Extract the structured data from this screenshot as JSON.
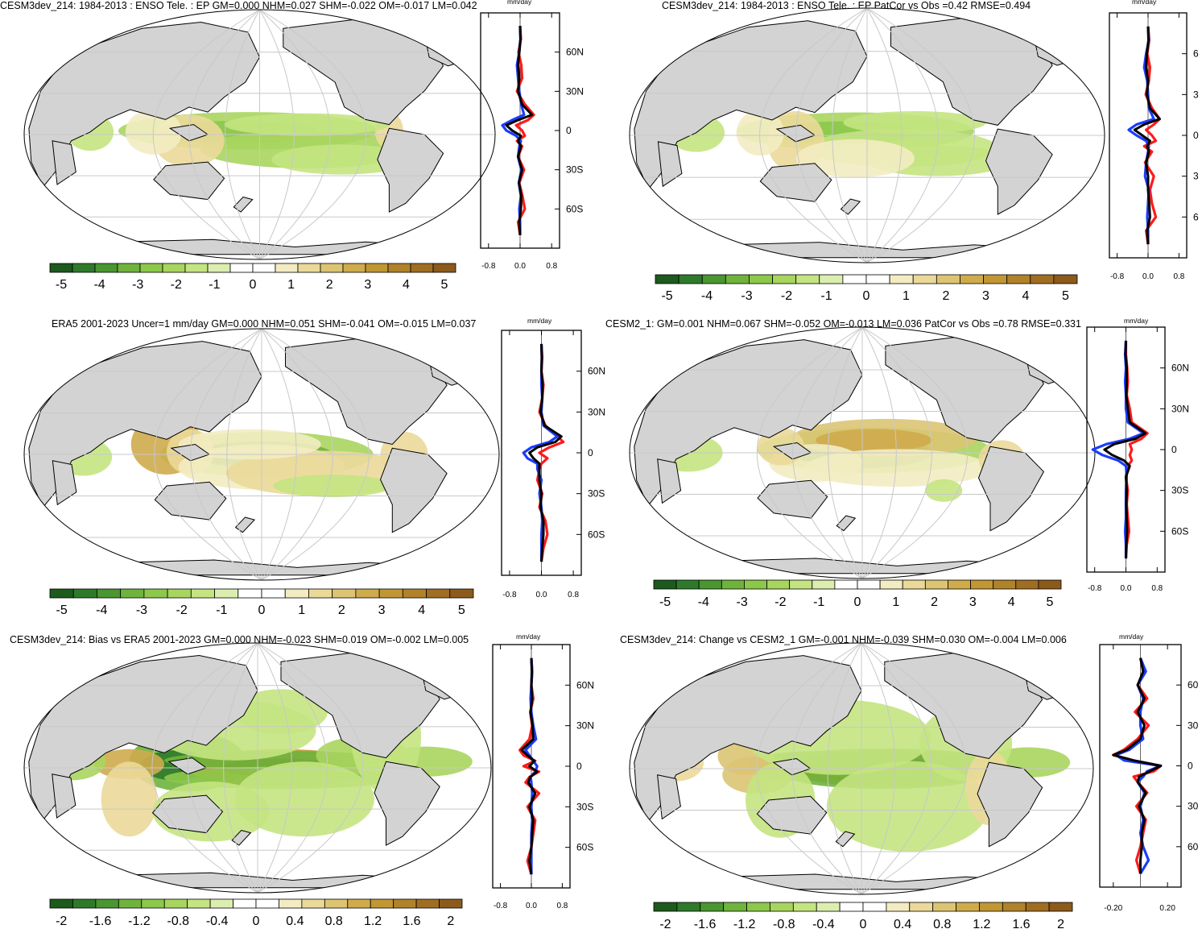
{
  "colors": {
    "land": "#d3d3d3",
    "ocean": "#ffffff",
    "grid": "#c8c8c8",
    "line_red": "#ff1a1a",
    "line_blue": "#1a3cff",
    "line_black": "#000000",
    "palette": [
      "#1d5a1d",
      "#2f7a2a",
      "#4a9630",
      "#6fb33c",
      "#8cc84a",
      "#a8d55e",
      "#c4e481",
      "#dcedb0",
      "#ffffff",
      "#ffffff",
      "#f3ecc2",
      "#ebd99a",
      "#dcc473",
      "#cfab4c",
      "#c19734",
      "#b0822a",
      "#a06e22",
      "#8c5a1a"
    ]
  },
  "panels": [
    {
      "title": "CESM3dev_214: 1984-2013 : ENSO Tele. : EP GM=0.000 NHM=0.027 SHM=-0.022 OM=-0.017 LM=0.042",
      "unit": "mm/day",
      "colorbar_labels": [
        "-5",
        "-4",
        "-3",
        "-2",
        "-1",
        "0",
        "1",
        "2",
        "3",
        "4",
        "5"
      ],
      "profile_x_ticks": [
        "-0.8",
        "0.0",
        "0.8"
      ],
      "profile_y_ticks": [
        "60N",
        "30N",
        "0",
        "30S",
        "60S"
      ]
    },
    {
      "title": "CESM3dev_214: 1984-2013 : ENSO Tele. : EP PatCor vs Obs =0.42 RMSE=0.494",
      "unit": "mm/day",
      "colorbar_labels": [
        "-5",
        "-4",
        "-3",
        "-2",
        "-1",
        "0",
        "1",
        "2",
        "3",
        "4",
        "5"
      ],
      "profile_x_ticks": [
        "-0.8",
        "0.0",
        "0.8"
      ],
      "profile_y_ticks": [
        "6",
        "3",
        "0",
        "3",
        "6"
      ]
    },
    {
      "title": "ERA5 2001-2023 Uncer=1 mm/day GM=0.000 NHM=0.051 SHM=-0.041 OM=-0.015 LM=0.037",
      "unit": "mm/day",
      "colorbar_labels": [
        "-5",
        "-4",
        "-3",
        "-2",
        "-1",
        "0",
        "1",
        "2",
        "3",
        "4",
        "5"
      ],
      "profile_x_ticks": [
        "-0.8",
        "0.0",
        "0.8"
      ],
      "profile_y_ticks": [
        "60N",
        "30N",
        "0",
        "30S",
        "60S"
      ]
    },
    {
      "title": "CESM2_1: GM=0.001 NHM=0.067 SHM=-0.052 OM=-0.013 LM=0.036 PatCor vs Obs =0.78 RMSE=0.331",
      "unit": "mm/day",
      "colorbar_labels": [
        "-5",
        "-4",
        "-3",
        "-2",
        "-1",
        "0",
        "1",
        "2",
        "3",
        "4",
        "5"
      ],
      "profile_x_ticks": [
        "-0.8",
        "0.0",
        "0.8"
      ],
      "profile_y_ticks": [
        "60N",
        "30N",
        "0",
        "30S",
        "60S"
      ]
    },
    {
      "title": "CESM3dev_214: Bias vs ERA5 2001-2023 GM=0.000 NHM=-0.023 SHM=0.019 OM=-0.002 LM=0.005",
      "unit": "mm/day",
      "colorbar_labels": [
        "-2",
        "-1.6",
        "-1.2",
        "-0.8",
        "-0.4",
        "0",
        "0.4",
        "0.8",
        "1.2",
        "1.6",
        "2"
      ],
      "profile_x_ticks": [
        "-0.8",
        "0.0",
        "0.8"
      ],
      "profile_y_ticks": [
        "60N",
        "30N",
        "0",
        "30S",
        "60S"
      ]
    },
    {
      "title": "CESM3dev_214: Change vs CESM2_1 GM=-0.001 NHM=-0.039 SHM=0.030 OM=-0.004 LM=0.006",
      "unit": "mm/day",
      "colorbar_labels": [
        "-2",
        "-1.6",
        "-1.2",
        "-0.8",
        "-0.4",
        "0",
        "0.4",
        "0.8",
        "1.2",
        "1.6",
        "2"
      ],
      "profile_x_ticks": [
        "-0.20",
        "0.20"
      ],
      "profile_y_ticks": [
        "60",
        "30",
        "0",
        "30",
        "60"
      ]
    }
  ],
  "chart_data": [
    {
      "type": "heatmap",
      "title": "CESM3dev_214: 1984-2013 : ENSO Tele. : EP GM=0.000 NHM=0.027 SHM=-0.022 OM=-0.017 LM=0.042",
      "colorbar_range": [
        -5,
        5
      ],
      "zonal_profile": {
        "xlim": [
          -1,
          1
        ],
        "ylim": [
          -90,
          90
        ],
        "lat": [
          80,
          70,
          60,
          50,
          40,
          30,
          20,
          12,
          8,
          4,
          0,
          -4,
          -8,
          -12,
          -20,
          -30,
          -40,
          -50,
          -60,
          -70,
          -80
        ],
        "series": [
          {
            "name": "red",
            "values": [
              0,
              0.02,
              -0.04,
              0.03,
              0.05,
              -0.08,
              0.12,
              0.35,
              0.2,
              -0.1,
              0.05,
              0.12,
              -0.08,
              0.05,
              -0.05,
              0.1,
              -0.02,
              0.06,
              0.12,
              -0.05,
              0
            ]
          },
          {
            "name": "blue",
            "values": [
              0,
              0.01,
              -0.02,
              -0.08,
              -0.05,
              -0.02,
              0.03,
              0.1,
              -0.2,
              -0.45,
              -0.35,
              -0.1,
              0.02,
              -0.02,
              -0.05,
              0.03,
              -0.03,
              0.02,
              -0.02,
              0.0,
              0
            ]
          },
          {
            "name": "black",
            "values": [
              0,
              0.01,
              -0.02,
              -0.05,
              -0.02,
              -0.05,
              0.05,
              0.3,
              -0.05,
              -0.35,
              -0.2,
              0.02,
              -0.05,
              0.02,
              -0.05,
              0.05,
              -0.03,
              0.03,
              0.02,
              -0.02,
              0
            ]
          }
        ]
      }
    },
    {
      "type": "heatmap",
      "title": "CESM3dev_214: 1984-2013 : ENSO Tele. : EP PatCor vs Obs =0.42 RMSE=0.494",
      "colorbar_range": [
        -5,
        5
      ],
      "zonal_profile": {
        "xlim": [
          -1,
          1
        ],
        "ylim": [
          -90,
          90
        ],
        "lat": [
          80,
          70,
          60,
          50,
          40,
          30,
          20,
          12,
          8,
          4,
          0,
          -4,
          -8,
          -12,
          -20,
          -30,
          -40,
          -50,
          -60,
          -70,
          -80
        ],
        "series": [
          {
            "name": "red",
            "values": [
              0,
              0.03,
              -0.02,
              0.05,
              0.02,
              -0.06,
              0.1,
              0.3,
              0.15,
              -0.05,
              0.1,
              0.2,
              -0.1,
              0.1,
              -0.08,
              0.15,
              0.05,
              0.1,
              0.2,
              -0.05,
              0
            ]
          },
          {
            "name": "blue",
            "values": [
              0,
              0.02,
              -0.05,
              -0.1,
              -0.02,
              0.0,
              0.02,
              0.15,
              -0.3,
              -0.5,
              -0.3,
              -0.05,
              0.02,
              0.0,
              -0.05,
              -0.08,
              0.02,
              0.0,
              -0.02,
              0.0,
              0
            ]
          },
          {
            "name": "black",
            "values": [
              0,
              0.01,
              -0.03,
              -0.05,
              0.0,
              -0.03,
              0.05,
              0.3,
              -0.1,
              -0.35,
              -0.15,
              0.05,
              -0.02,
              0.02,
              -0.05,
              0.0,
              0.0,
              0.03,
              0.05,
              -0.02,
              0
            ]
          }
        ]
      }
    },
    {
      "type": "heatmap",
      "title": "ERA5 2001-2023 Uncer=1 mm/day GM=0.000 NHM=0.051 SHM=-0.041 OM=-0.015 LM=0.037",
      "colorbar_range": [
        -5,
        5
      ],
      "zonal_profile": {
        "xlim": [
          -1,
          1
        ],
        "ylim": [
          -90,
          90
        ],
        "lat": [
          80,
          70,
          60,
          50,
          40,
          30,
          20,
          12,
          8,
          4,
          0,
          -4,
          -8,
          -12,
          -20,
          -30,
          -40,
          -50,
          -60,
          -70,
          -80
        ],
        "series": [
          {
            "name": "red",
            "values": [
              0,
              0.02,
              0.0,
              0.05,
              0.02,
              -0.05,
              0.1,
              0.4,
              0.55,
              0.2,
              -0.05,
              0.15,
              0.0,
              -0.05,
              -0.1,
              0.02,
              -0.05,
              0.1,
              0.15,
              0.05,
              0
            ]
          },
          {
            "name": "blue",
            "values": [
              0,
              0.01,
              0.0,
              0.0,
              0.02,
              0.0,
              0.05,
              0.4,
              0.2,
              -0.25,
              -0.45,
              -0.35,
              -0.1,
              -0.1,
              0.0,
              -0.05,
              0.0,
              0.02,
              0.0,
              0.0,
              0
            ]
          },
          {
            "name": "black",
            "values": [
              0,
              0.01,
              0.0,
              0.03,
              0.02,
              -0.02,
              0.08,
              0.5,
              0.35,
              -0.1,
              -0.3,
              -0.2,
              -0.05,
              -0.05,
              -0.05,
              0.0,
              -0.02,
              0.05,
              0.05,
              0.02,
              0
            ]
          }
        ]
      }
    },
    {
      "type": "heatmap",
      "title": "CESM2_1: GM=0.001 NHM=0.067 SHM=-0.052 OM=-0.013 LM=0.036 PatCor vs Obs =0.78 RMSE=0.331",
      "colorbar_range": [
        -5,
        5
      ],
      "zonal_profile": {
        "xlim": [
          -1,
          1
        ],
        "ylim": [
          -90,
          90
        ],
        "lat": [
          80,
          70,
          60,
          50,
          40,
          30,
          20,
          12,
          8,
          4,
          0,
          -4,
          -8,
          -12,
          -20,
          -30,
          -40,
          -50,
          -60,
          -70,
          -80
        ],
        "series": [
          {
            "name": "red",
            "values": [
              0,
              0.0,
              0.03,
              0.05,
              0.02,
              0.1,
              0.15,
              0.55,
              0.4,
              0.1,
              0.15,
              0.1,
              0.15,
              0.05,
              0.0,
              0.05,
              0.02,
              0.05,
              0.08,
              0.02,
              0
            ]
          },
          {
            "name": "blue",
            "values": [
              0,
              -0.02,
              0.0,
              -0.02,
              0.0,
              0.0,
              0.05,
              0.45,
              0.1,
              -0.5,
              -0.85,
              -0.6,
              -0.2,
              0.0,
              0.02,
              0.0,
              0.0,
              0.0,
              -0.02,
              0.0,
              0
            ]
          },
          {
            "name": "black",
            "values": [
              0,
              -0.01,
              0.02,
              0.02,
              0.01,
              0.05,
              0.1,
              0.5,
              0.25,
              -0.3,
              -0.55,
              -0.35,
              -0.05,
              0.1,
              0.0,
              0.02,
              0.01,
              0.02,
              0.03,
              0.01,
              0
            ]
          }
        ]
      }
    },
    {
      "type": "heatmap",
      "title": "CESM3dev_214: Bias vs ERA5 2001-2023 GM=0.000 NHM=-0.023 SHM=0.019 OM=-0.002 LM=0.005",
      "colorbar_range": [
        -2,
        2
      ],
      "zonal_profile": {
        "xlim": [
          -1,
          1
        ],
        "ylim": [
          -90,
          90
        ],
        "lat": [
          80,
          70,
          60,
          50,
          40,
          30,
          20,
          12,
          8,
          4,
          0,
          -4,
          -8,
          -12,
          -20,
          -30,
          -40,
          -50,
          -60,
          -70,
          -80
        ],
        "series": [
          {
            "name": "red",
            "values": [
              0,
              0.02,
              0.0,
              0.05,
              -0.03,
              0.02,
              -0.05,
              -0.3,
              -0.2,
              0.1,
              -0.2,
              0.2,
              -0.05,
              -0.15,
              0.2,
              -0.1,
              0.1,
              0.05,
              0.0,
              -0.1,
              0
            ]
          },
          {
            "name": "blue",
            "values": [
              0,
              0.02,
              0.0,
              -0.02,
              0.0,
              0.05,
              0.12,
              -0.15,
              -0.05,
              0.05,
              0.15,
              0.1,
              -0.02,
              0.0,
              0.02,
              0.0,
              0.02,
              0.0,
              0.0,
              0.0,
              0
            ]
          },
          {
            "name": "black",
            "values": [
              0,
              0.01,
              0.0,
              0.02,
              -0.02,
              0.03,
              0.05,
              -0.25,
              -0.1,
              0.08,
              -0.05,
              0.15,
              -0.03,
              -0.08,
              0.1,
              -0.05,
              0.05,
              0.02,
              0.0,
              -0.05,
              0
            ]
          }
        ]
      }
    },
    {
      "type": "heatmap",
      "title": "CESM3dev_214: Change vs CESM2_1 GM=-0.001 NHM=-0.039 SHM=0.030 OM=-0.004 LM=0.006",
      "colorbar_range": [
        -2,
        2
      ],
      "zonal_profile": {
        "xlim": [
          -0.3,
          0.3
        ],
        "ylim": [
          -90,
          90
        ],
        "lat": [
          80,
          70,
          60,
          50,
          40,
          30,
          20,
          12,
          8,
          4,
          0,
          -4,
          -8,
          -12,
          -20,
          -30,
          -40,
          -50,
          -60,
          -70,
          -80
        ],
        "series": [
          {
            "name": "red",
            "values": [
              0,
              0.03,
              -0.02,
              0.05,
              -0.04,
              0.06,
              -0.02,
              -0.12,
              -0.2,
              -0.05,
              0.15,
              0.1,
              -0.05,
              -0.02,
              0.05,
              -0.03,
              0.04,
              0.02,
              0.0,
              -0.03,
              0
            ]
          },
          {
            "name": "blue",
            "values": [
              0,
              0.04,
              -0.02,
              0.02,
              0.0,
              0.0,
              0.02,
              -0.08,
              -0.18,
              -0.12,
              0.15,
              0.05,
              0.02,
              -0.02,
              0.03,
              0.0,
              0.02,
              0.0,
              0.02,
              0.06,
              0
            ]
          },
          {
            "name": "black",
            "values": [
              0,
              0.02,
              -0.02,
              0.03,
              -0.02,
              0.03,
              0.0,
              -0.1,
              -0.2,
              -0.05,
              0.15,
              0.07,
              -0.01,
              -0.02,
              0.04,
              -0.01,
              0.03,
              0.01,
              0.01,
              0.0,
              0
            ]
          }
        ]
      }
    }
  ]
}
